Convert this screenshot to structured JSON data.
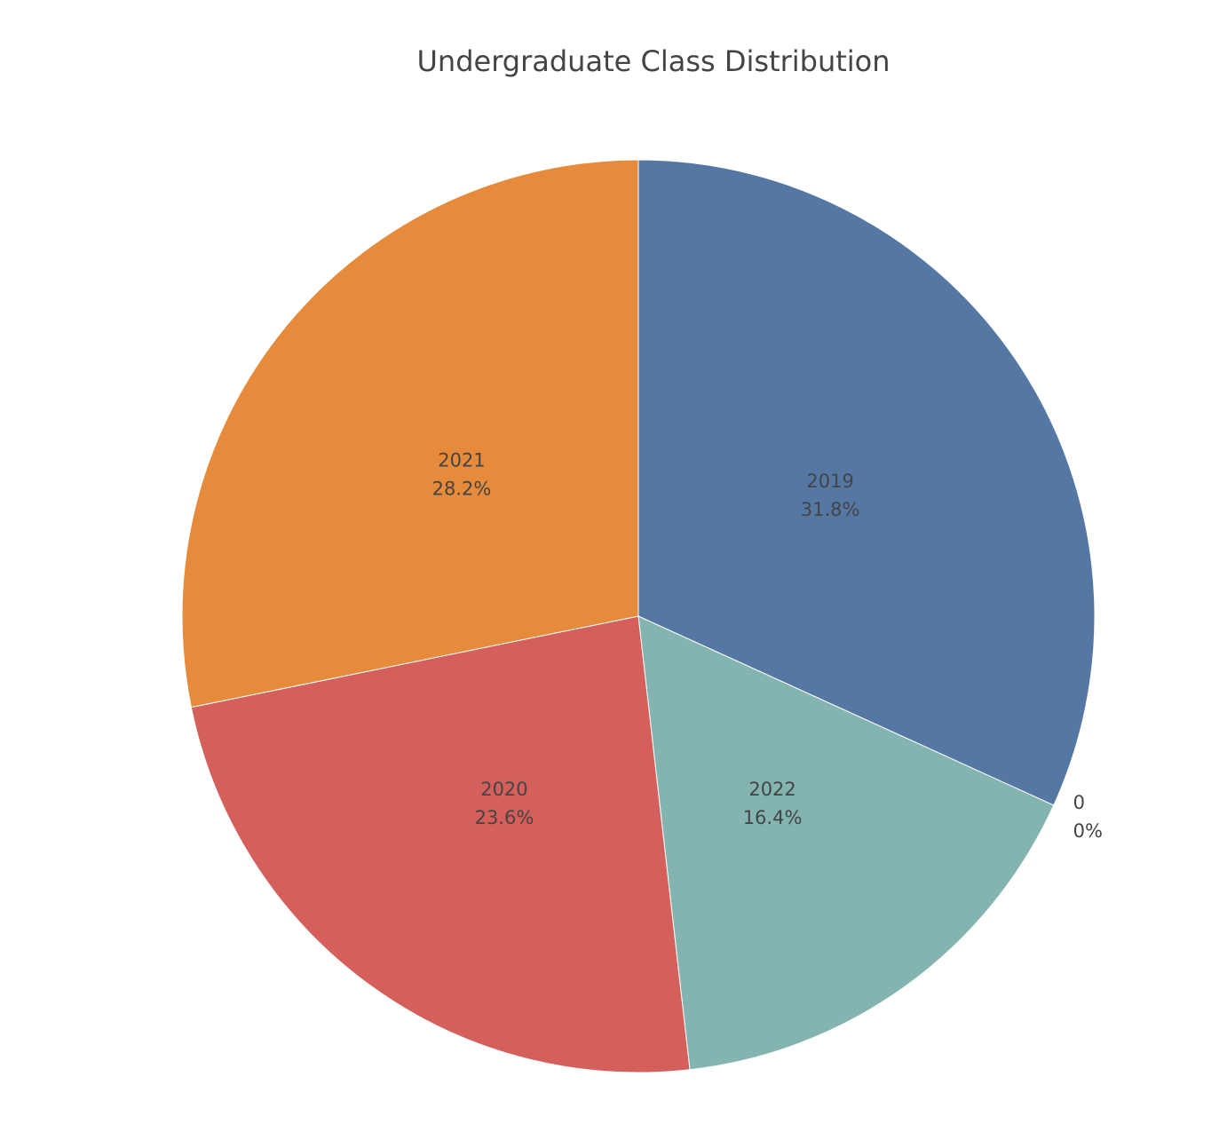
{
  "chart_data": {
    "type": "pie",
    "title": "Undergraduate Class Distribution",
    "slices": [
      {
        "label": "2019",
        "value": 31.8,
        "percent_text": "31.8%",
        "color": "#5577a3"
      },
      {
        "label": "0",
        "value": 0,
        "percent_text": "0%",
        "color": "#cccccc"
      },
      {
        "label": "2022",
        "value": 16.4,
        "percent_text": "16.4%",
        "color": "#83b4b0"
      },
      {
        "label": "2020",
        "value": 23.6,
        "percent_text": "23.6%",
        "color": "#d55f5b"
      },
      {
        "label": "2021",
        "value": 28.2,
        "percent_text": "28.2%",
        "color": "#e58b3b"
      }
    ],
    "direction": "clockwise",
    "start": "top",
    "text_color": "#444444",
    "legend": "none"
  }
}
